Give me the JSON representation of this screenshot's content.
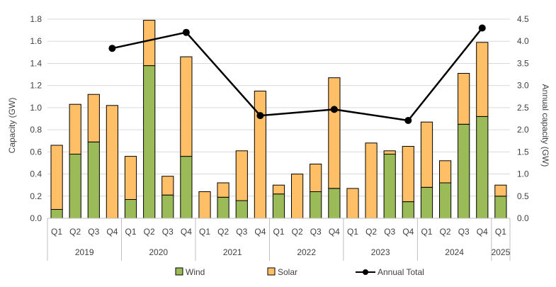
{
  "chart_data": {
    "type": "bar",
    "stacked": true,
    "categories": [
      "Q1",
      "Q2",
      "Q3",
      "Q4",
      "Q1",
      "Q2",
      "Q3",
      "Q4",
      "Q1",
      "Q2",
      "Q3",
      "Q4",
      "Q1",
      "Q2",
      "Q3",
      "Q4",
      "Q1",
      "Q2",
      "Q3",
      "Q4",
      "Q1",
      "Q2",
      "Q3",
      "Q4",
      "Q1"
    ],
    "years": [
      {
        "label": "2019",
        "start": 0,
        "count": 4
      },
      {
        "label": "2020",
        "start": 4,
        "count": 4
      },
      {
        "label": "2021",
        "start": 8,
        "count": 4
      },
      {
        "label": "2022",
        "start": 12,
        "count": 4
      },
      {
        "label": "2023",
        "start": 16,
        "count": 4
      },
      {
        "label": "2024",
        "start": 20,
        "count": 4
      },
      {
        "label": "2025",
        "start": 24,
        "count": 1
      }
    ],
    "series": [
      {
        "name": "Wind",
        "color": "#9BBB59",
        "values": [
          0.08,
          0.58,
          0.69,
          0.0,
          0.17,
          1.38,
          0.21,
          0.56,
          0.0,
          0.19,
          0.16,
          0.0,
          0.22,
          0.0,
          0.24,
          0.27,
          0.0,
          0.0,
          0.58,
          0.15,
          0.28,
          0.32,
          0.85,
          0.92,
          0.2
        ]
      },
      {
        "name": "Solar",
        "color": "#FFBF66",
        "values": [
          0.58,
          0.45,
          0.43,
          1.02,
          0.39,
          0.41,
          0.17,
          0.9,
          0.24,
          0.13,
          0.45,
          1.15,
          0.08,
          0.4,
          0.25,
          1.0,
          0.27,
          0.68,
          0.03,
          0.5,
          0.59,
          0.2,
          0.46,
          0.67,
          0.1
        ]
      }
    ],
    "line": {
      "name": "Annual Total",
      "color": "#000000",
      "points": [
        {
          "index": 3,
          "value": 3.84
        },
        {
          "index": 7,
          "value": 4.2
        },
        {
          "index": 11,
          "value": 2.32
        },
        {
          "index": 15,
          "value": 2.46
        },
        {
          "index": 19,
          "value": 2.21
        },
        {
          "index": 23,
          "value": 4.3
        }
      ]
    },
    "y_left": {
      "label": "Capacity (GW)",
      "min": 0,
      "max": 1.8,
      "ticks": [
        "0.0",
        "0.2",
        "0.4",
        "0.6",
        "0.8",
        "1.0",
        "1.2",
        "1.4",
        "1.6",
        "1.8"
      ]
    },
    "y_right": {
      "label": "Annual capacity (GW)",
      "min": 0,
      "max": 4.5,
      "ticks": [
        "0.0",
        "0.5",
        "1.0",
        "1.5",
        "2.0",
        "2.5",
        "3.0",
        "3.5",
        "4.0",
        "4.5"
      ]
    },
    "grid": true,
    "legend_position": "bottom"
  }
}
